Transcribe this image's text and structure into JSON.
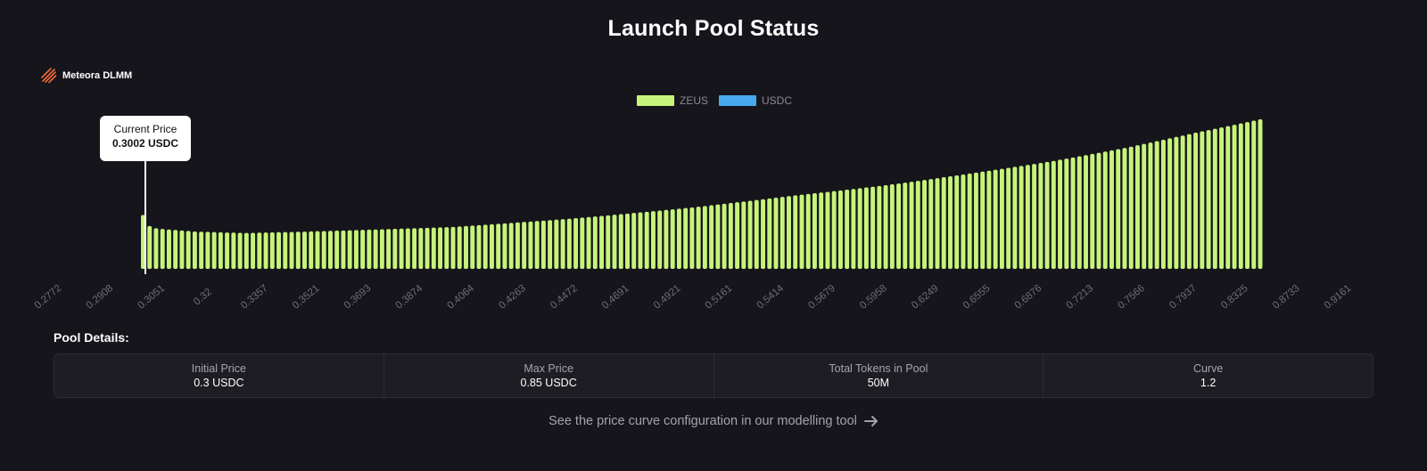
{
  "page_title": "Launch Pool Status",
  "brand": {
    "name": "Meteora DLMM",
    "logo_icon": "meteora-stripes-icon",
    "logo_color": "#f26b3a"
  },
  "legend": [
    {
      "name": "ZEUS",
      "color": "#c6f47b"
    },
    {
      "name": "USDC",
      "color": "#47a9ee"
    }
  ],
  "tooltip": {
    "label": "Current Price",
    "value": "0.3002 USDC"
  },
  "chart_data": {
    "type": "bar",
    "title": "",
    "xlabel": "",
    "ylabel": "",
    "x_tick_labels": [
      "0.2772",
      "0.2908",
      "0.3051",
      "0.32",
      "0.3357",
      "0.3521",
      "0.3693",
      "0.3874",
      "0.4064",
      "0.4263",
      "0.4472",
      "0.4691",
      "0.4921",
      "0.5161",
      "0.5414",
      "0.5679",
      "0.5958",
      "0.6249",
      "0.6555",
      "0.6876",
      "0.7213",
      "0.7566",
      "0.7937",
      "0.8325",
      "0.8733",
      "0.9161"
    ],
    "bin_count": 174,
    "series": [
      {
        "name": "ZEUS",
        "color": "#c6f47b",
        "profile": [
          {
            "price": 0.3002,
            "relative_amount": 0.36
          },
          {
            "price": 0.3016,
            "relative_amount": 0.29
          },
          {
            "price": 0.304,
            "relative_amount": 0.27
          },
          {
            "price": 0.315,
            "relative_amount": 0.25
          },
          {
            "price": 0.33,
            "relative_amount": 0.24
          },
          {
            "price": 0.35,
            "relative_amount": 0.25
          },
          {
            "price": 0.4,
            "relative_amount": 0.28
          },
          {
            "price": 0.45,
            "relative_amount": 0.34
          },
          {
            "price": 0.5,
            "relative_amount": 0.41
          },
          {
            "price": 0.55,
            "relative_amount": 0.49
          },
          {
            "price": 0.6,
            "relative_amount": 0.56
          },
          {
            "price": 0.65,
            "relative_amount": 0.64
          },
          {
            "price": 0.7,
            "relative_amount": 0.72
          },
          {
            "price": 0.75,
            "relative_amount": 0.81
          },
          {
            "price": 0.8,
            "relative_amount": 0.91
          },
          {
            "price": 0.85,
            "relative_amount": 1.0
          }
        ]
      },
      {
        "name": "USDC",
        "color": "#47a9ee",
        "profile": []
      }
    ],
    "grid": false,
    "legend_position": "top-center"
  },
  "pool_details": {
    "heading": "Pool Details:",
    "items": [
      {
        "label": "Initial Price",
        "value": "0.3 USDC"
      },
      {
        "label": "Max Price",
        "value": "0.85 USDC"
      },
      {
        "label": "Total Tokens in Pool",
        "value": "50M"
      },
      {
        "label": "Curve",
        "value": "1.2"
      }
    ]
  },
  "footer": {
    "link_text": "See the price curve configuration in our modelling tool",
    "icon": "arrow-right-icon"
  }
}
